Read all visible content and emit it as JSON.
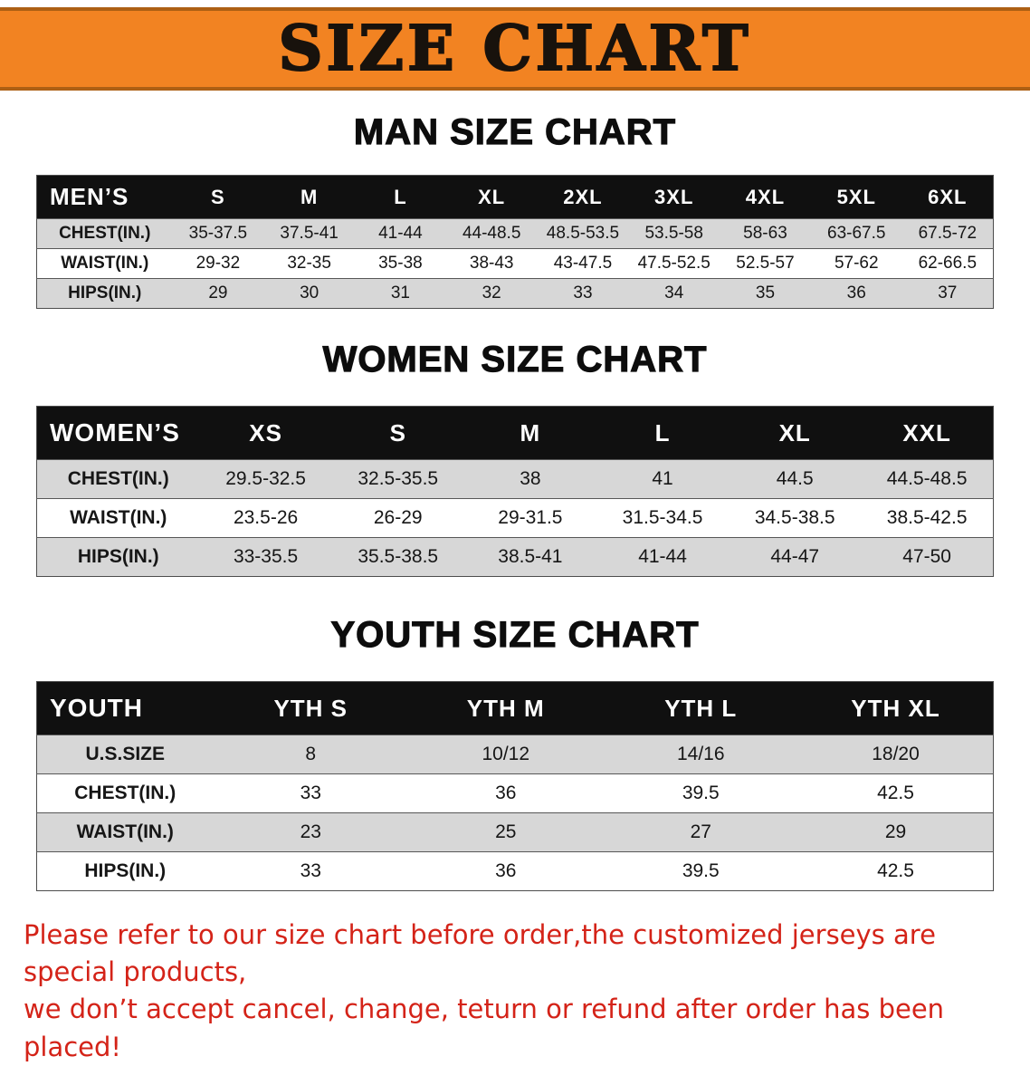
{
  "banner": {
    "title": "SIZE CHART"
  },
  "colors": {
    "banner_bg": "#f28322",
    "banner_border": "#ad5f14",
    "table_header_bg": "#101010",
    "row_alt_bg": "#d7d7d7",
    "note_red": "#d42318"
  },
  "sections": [
    {
      "id": "men",
      "heading": "MAN SIZE CHART",
      "table": {
        "header": [
          "MEN’S",
          "S",
          "M",
          "L",
          "XL",
          "2XL",
          "3XL",
          "4XL",
          "5XL",
          "6XL"
        ],
        "rows": [
          [
            "CHEST(IN.)",
            "35-37.5",
            "37.5-41",
            "41-44",
            "44-48.5",
            "48.5-53.5",
            "53.5-58",
            "58-63",
            "63-67.5",
            "67.5-72"
          ],
          [
            "WAIST(IN.)",
            "29-32",
            "32-35",
            "35-38",
            "38-43",
            "43-47.5",
            "47.5-52.5",
            "52.5-57",
            "57-62",
            "62-66.5"
          ],
          [
            "HIPS(IN.)",
            "29",
            "30",
            "31",
            "32",
            "33",
            "34",
            "35",
            "36",
            "37"
          ]
        ]
      }
    },
    {
      "id": "women",
      "heading": "WOMEN SIZE CHART",
      "table": {
        "header": [
          "WOMEN’S",
          "XS",
          "S",
          "M",
          "L",
          "XL",
          "XXL"
        ],
        "rows": [
          [
            "CHEST(IN.)",
            "29.5-32.5",
            "32.5-35.5",
            "38",
            "41",
            "44.5",
            "44.5-48.5"
          ],
          [
            "WAIST(IN.)",
            "23.5-26",
            "26-29",
            "29-31.5",
            "31.5-34.5",
            "34.5-38.5",
            "38.5-42.5"
          ],
          [
            "HIPS(IN.)",
            "33-35.5",
            "35.5-38.5",
            "38.5-41",
            "41-44",
            "44-47",
            "47-50"
          ]
        ]
      }
    },
    {
      "id": "youth",
      "heading": "YOUTH SIZE CHART",
      "table": {
        "header": [
          "YOUTH",
          "YTH S",
          "YTH M",
          "YTH L",
          "YTH XL"
        ],
        "rows": [
          [
            "U.S.SIZE",
            "8",
            "10/12",
            "14/16",
            "18/20"
          ],
          [
            "CHEST(IN.)",
            "33",
            "36",
            "39.5",
            "42.5"
          ],
          [
            "WAIST(IN.)",
            "23",
            "25",
            "27",
            "29"
          ],
          [
            "HIPS(IN.)",
            "33",
            "36",
            "39.5",
            "42.5"
          ]
        ]
      }
    }
  ],
  "note": {
    "line1": "Please refer to our size chart before order,the customized jerseys are special products,",
    "line2": "we don’t accept cancel, change, teturn or refund after order has been placed!"
  }
}
